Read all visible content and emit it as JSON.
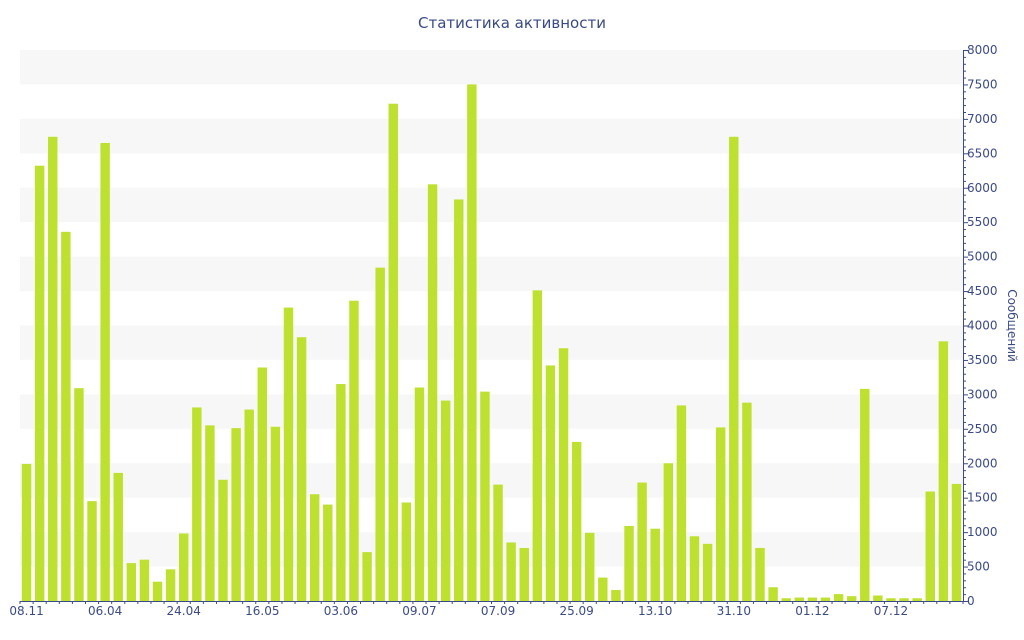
{
  "chart_data": {
    "type": "bar",
    "title": "Статистика активности",
    "ylabel": "Сообщений",
    "xlabel": "",
    "ylim": [
      0,
      8000
    ],
    "y_ticks": [
      0,
      500,
      1000,
      1500,
      2000,
      2500,
      3000,
      3500,
      4000,
      4500,
      5000,
      5500,
      6000,
      6500,
      7000,
      7500,
      8000
    ],
    "y_axis_side": "right",
    "x_tick_labels": [
      {
        "index": 0,
        "label": "08.11"
      },
      {
        "index": 6,
        "label": "06.04"
      },
      {
        "index": 12,
        "label": "24.04"
      },
      {
        "index": 18,
        "label": "16.05"
      },
      {
        "index": 24,
        "label": "03.06"
      },
      {
        "index": 30,
        "label": "09.07"
      },
      {
        "index": 36,
        "label": "07.09"
      },
      {
        "index": 42,
        "label": "25.09"
      },
      {
        "index": 48,
        "label": "13.10"
      },
      {
        "index": 54,
        "label": "31.10"
      },
      {
        "index": 60,
        "label": "01.12"
      },
      {
        "index": 66,
        "label": "07.12"
      }
    ],
    "grid": "horizontal alternating bands",
    "bar_color": "#bde12e",
    "band_color": "#f7f7f7",
    "axis_color": "#3a4a85",
    "values": [
      1990,
      6320,
      6740,
      5360,
      3090,
      1450,
      6650,
      1860,
      550,
      600,
      280,
      460,
      980,
      2810,
      2550,
      1760,
      2510,
      2780,
      3390,
      2530,
      4260,
      3830,
      1550,
      1400,
      3150,
      4360,
      710,
      4840,
      7220,
      1430,
      3100,
      6050,
      2910,
      5830,
      7500,
      3040,
      1690,
      850,
      770,
      4510,
      3420,
      3670,
      2310,
      990,
      340,
      160,
      1090,
      1720,
      1050,
      2000,
      2840,
      940,
      830,
      2520,
      6740,
      2880,
      770,
      200,
      40,
      50,
      50,
      50,
      100,
      70,
      3080,
      80,
      40,
      40,
      40,
      1590,
      3770,
      1700
    ]
  }
}
